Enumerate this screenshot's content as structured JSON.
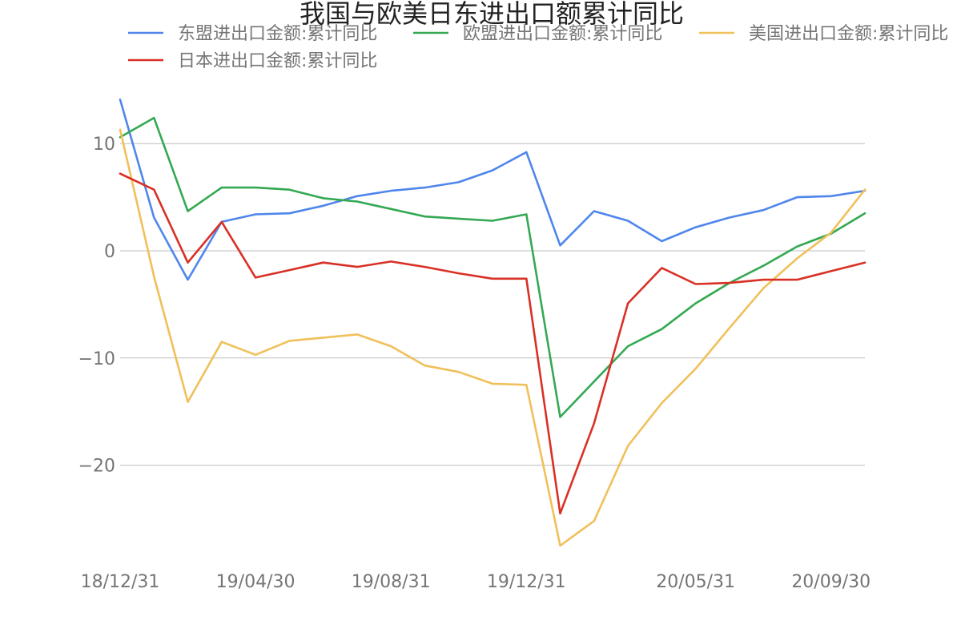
{
  "chart_data": {
    "type": "line",
    "title": "我国与欧美日东进出口额累计同比",
    "xlabel": "",
    "ylabel": "",
    "x": [
      "18/12/31",
      "19/01/31",
      "19/02/28",
      "19/03/31",
      "19/04/30",
      "19/05/31",
      "19/06/30",
      "19/07/31",
      "19/08/31",
      "19/09/30",
      "19/10/31",
      "19/11/30",
      "19/12/31",
      "20/01/31",
      "20/02/29",
      "20/03/31",
      "20/04/30",
      "20/05/31",
      "20/06/30",
      "20/07/31",
      "20/08/31",
      "20/09/30",
      "20/10/31",
      "20/11/30"
    ],
    "x_tick_labels": [
      "18/12/31",
      "19/04/30",
      "19/08/31",
      "19/12/31",
      "20/05/31",
      "20/09/30"
    ],
    "y_ticks": [
      10,
      0,
      -10,
      -20
    ],
    "y_tick_labels": [
      "10",
      "0",
      "−10",
      "−20"
    ],
    "ylim": [
      -28.5,
      14.5
    ],
    "grid": true,
    "legend_position": "top",
    "series": [
      {
        "name": "东盟进出口金额:累计同比",
        "color": "#4f86ec",
        "values": [
          14.1,
          3.1,
          -2.7,
          2.7,
          3.4,
          3.5,
          4.2,
          5.1,
          5.6,
          5.9,
          6.4,
          7.5,
          9.2,
          0.5,
          3.7,
          2.8,
          0.9,
          2.2,
          3.1,
          3.8,
          5.0,
          5.1,
          5.6,
          null
        ]
      },
      {
        "name": "欧盟进出口金额:累计同比",
        "color": "#34a853",
        "values": [
          10.6,
          12.4,
          3.7,
          5.9,
          5.9,
          5.7,
          4.9,
          4.6,
          3.9,
          3.2,
          3.0,
          2.8,
          3.4,
          -15.5,
          -12.2,
          -8.9,
          -7.3,
          -4.9,
          -3.0,
          -1.4,
          0.4,
          1.6,
          3.5,
          null
        ]
      },
      {
        "name": "美国进出口金额:累计同比",
        "color": "#f0c05a",
        "values": [
          11.3,
          -2.4,
          -14.1,
          -8.5,
          -9.7,
          -8.4,
          -8.1,
          -7.8,
          -8.9,
          -10.7,
          -11.3,
          -12.4,
          -12.5,
          -27.5,
          -25.2,
          -18.2,
          -14.2,
          -11.0,
          -7.2,
          -3.5,
          -0.7,
          1.7,
          5.7,
          null
        ]
      },
      {
        "name": "日本进出口金额:累计同比",
        "color": "#d93025",
        "values": [
          7.2,
          5.7,
          -1.1,
          2.7,
          -2.5,
          -1.8,
          -1.1,
          -1.5,
          -1.0,
          -1.5,
          -2.1,
          -2.6,
          -2.6,
          -24.5,
          -16.1,
          -4.9,
          -1.6,
          -3.1,
          -3.0,
          -2.7,
          -2.7,
          -1.9,
          -1.1,
          null
        ]
      }
    ]
  }
}
